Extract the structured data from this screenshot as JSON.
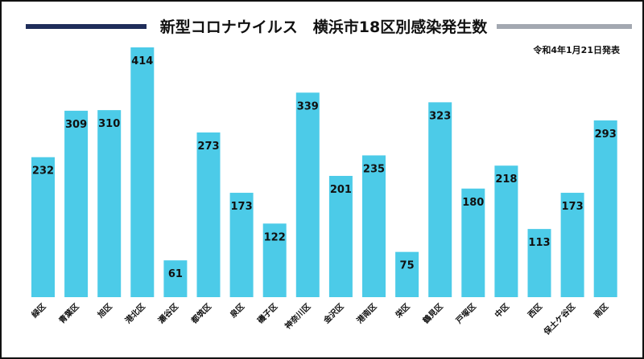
{
  "colors": {
    "bar": "#4ccbe8",
    "title_bar_left": "#1f2d5a",
    "title_bar_right": "#a3a8b1",
    "text": "#111111"
  },
  "chart_data": {
    "type": "bar",
    "title": "新型コロナウイルス　横浜市18区別感染発生数",
    "subtitle": "令和4年1月21日発表",
    "categories": [
      "緑区",
      "青葉区",
      "旭区",
      "港北区",
      "瀬谷区",
      "都筑区",
      "泉区",
      "磯子区",
      "神奈川区",
      "金沢区",
      "港南区",
      "栄区",
      "鶴見区",
      "戸塚区",
      "中区",
      "西区",
      "保土ケ谷区",
      "南区"
    ],
    "values": [
      232,
      309,
      310,
      414,
      61,
      273,
      173,
      122,
      339,
      201,
      235,
      75,
      323,
      180,
      218,
      113,
      173,
      293
    ],
    "ylim": [
      0,
      414
    ],
    "grid": false,
    "legend": "none"
  }
}
